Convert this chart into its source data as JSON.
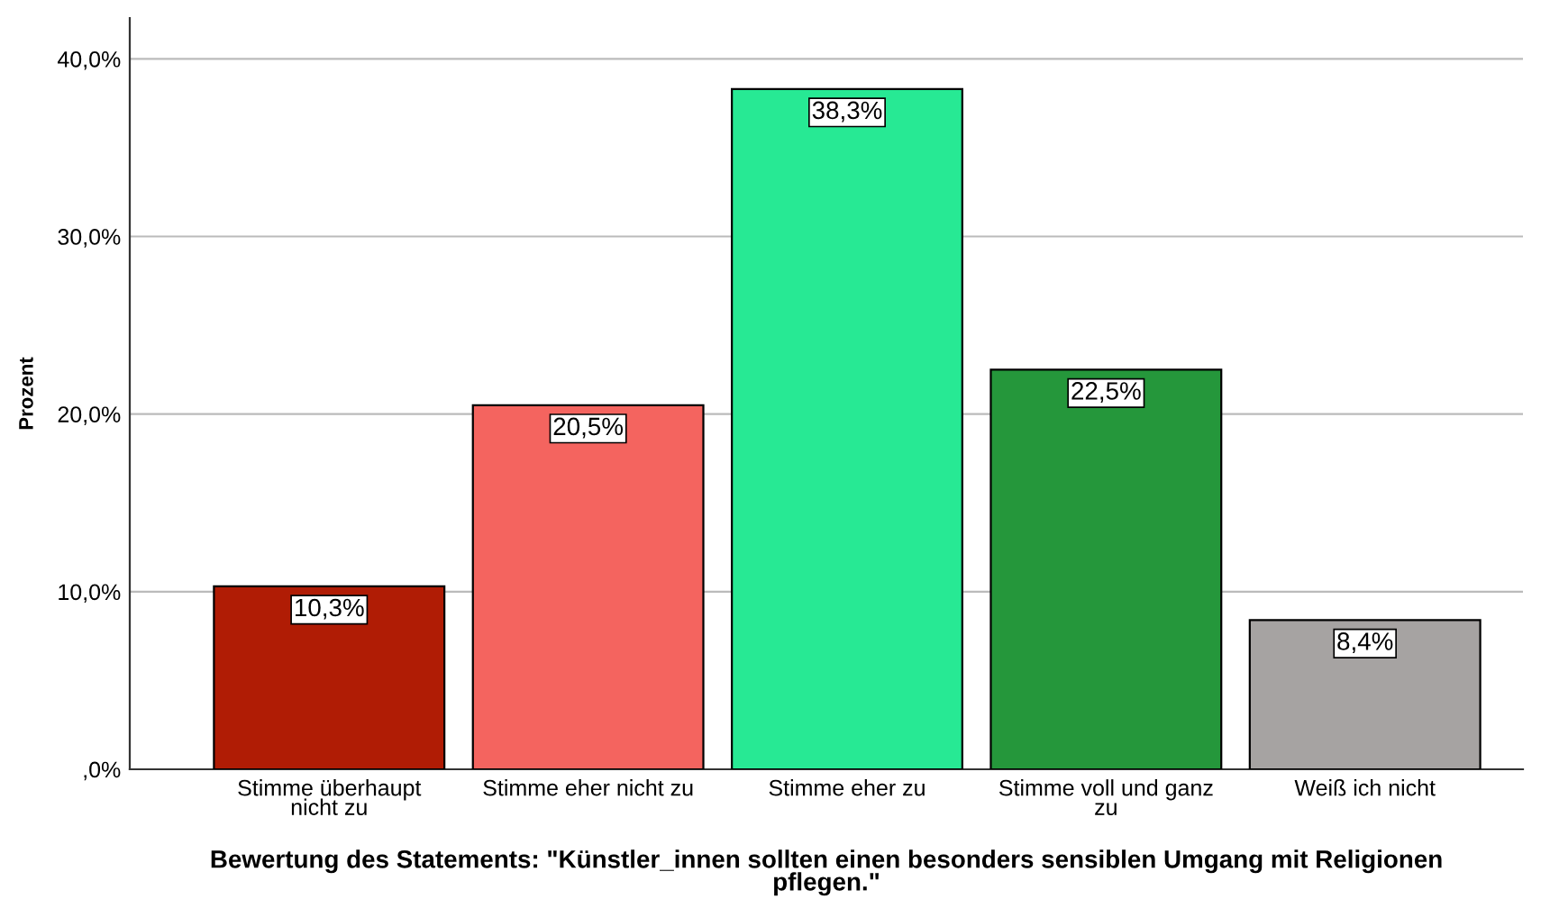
{
  "chart_data": {
    "type": "bar",
    "xlabel": "Bewertung des Statements: \"Künstler_innen sollten einen besonders sensiblen Umgang mit Religionen\npflegen.\"",
    "ylabel": "Prozent",
    "categories": [
      "Stimme überhaupt\nnicht zu",
      "Stimme eher nicht zu",
      "Stimme eher zu",
      "Stimme voll und ganz\nzu",
      "Weiß ich nicht"
    ],
    "values": [
      10.3,
      20.5,
      38.3,
      22.5,
      8.4
    ],
    "value_labels": [
      "10,3%",
      "20,5%",
      "38,3%",
      "22,5%",
      "8,4%"
    ],
    "colors": [
      "#b01c05",
      "#f4645f",
      "#27e994",
      "#25973b",
      "#a6a3a2"
    ],
    "ylim": [
      0,
      42.3
    ],
    "yticks": [
      {
        "value": 0,
        "label": ",0%"
      },
      {
        "value": 10,
        "label": "10,0%"
      },
      {
        "value": 20,
        "label": "20,0%"
      },
      {
        "value": 30,
        "label": "30,0%"
      },
      {
        "value": 40,
        "label": "40,0%"
      }
    ],
    "grid": "y"
  }
}
